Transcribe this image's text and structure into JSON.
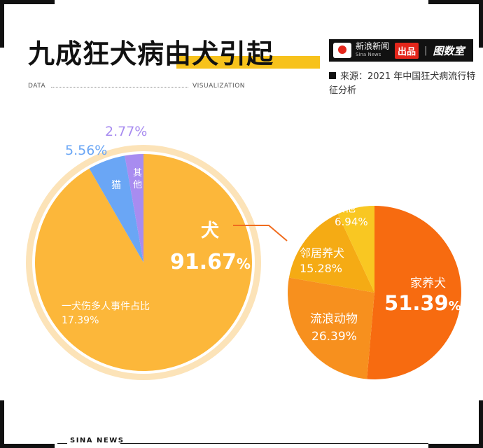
{
  "title": {
    "part1": "九成狂犬病",
    "part2": "由犬引起"
  },
  "brand": {
    "name_cn": "新浪新闻",
    "name_en": "Sina News",
    "badge": "出品",
    "separator": "|",
    "lab": "图数室"
  },
  "source": "来源：2021 年中国狂犬病流行特征分析",
  "header_left": "DATA",
  "header_right": "VISUALIZATION",
  "footer": "SINA NEWS",
  "colors": {
    "accent": "#f7c21c",
    "pie1_halo": "#fce3b8",
    "dog": "#fcb73a",
    "cat": "#6aa6f5",
    "other1": "#a88cf0",
    "home_dog": "#f76b10",
    "stray": "#f7901e",
    "neighbor": "#f5ab14",
    "other2": "#f9c722",
    "connector": "#f06c1e"
  },
  "chart_data": [
    {
      "type": "pie",
      "title": "",
      "slices": [
        {
          "label": "犬",
          "value": 91.67,
          "display": "91.67"
        },
        {
          "label": "猫",
          "value": 5.56,
          "display": "5.56%"
        },
        {
          "label": "其他",
          "value": 2.77,
          "display": "2.77%"
        }
      ],
      "annotation": {
        "label": "一犬伤多人事件占比",
        "value": 17.39,
        "display": "17.39%"
      }
    },
    {
      "type": "pie",
      "title": "",
      "slices": [
        {
          "label": "家养犬",
          "value": 51.39,
          "display": "51.39"
        },
        {
          "label": "流浪动物",
          "value": 26.39,
          "display": "26.39%"
        },
        {
          "label": "邻居养犬",
          "value": 15.28,
          "display": "15.28%"
        },
        {
          "label": "其他",
          "value": 6.94,
          "display": "6.94%"
        }
      ]
    }
  ]
}
